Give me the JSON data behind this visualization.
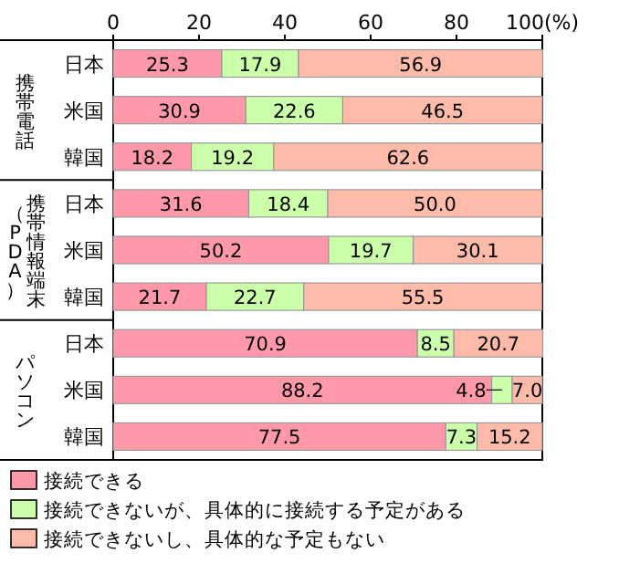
{
  "chart_data": {
    "type": "bar",
    "orientation": "horizontal",
    "stacked": true,
    "categories": [
      "日本",
      "米国",
      "韓国",
      "日本",
      "米国",
      "韓国",
      "日本",
      "米国",
      "韓国"
    ],
    "annotations": [
      "携帯電話",
      "携帯情報端末",
      "（PDA）",
      "パソコン"
    ],
    "xlim": [
      0,
      100
    ],
    "xticks": [
      0,
      20,
      40,
      60,
      80,
      {
        "value": 100,
        "label": "100(%)"
      }
    ],
    "legend": "bottom",
    "series": [
      {
        "name": "接続できる",
        "color": "#ff99aa",
        "values": [
          25.3,
          30.9,
          18.2,
          31.6,
          50.2,
          21.7,
          70.9,
          88.2,
          77.5
        ],
        "value_labels": [
          "25.3",
          "30.9",
          "18.2",
          "31.6",
          "50.2",
          "21.7",
          "70.9",
          "88.2",
          "77.5"
        ]
      },
      {
        "name": "接続できないが、具体的に接続する予定がある",
        "color": "#ccffaa",
        "values": [
          17.9,
          22.6,
          19.2,
          18.4,
          19.7,
          22.7,
          8.5,
          4.8,
          7.3
        ],
        "value_labels": [
          "17.9",
          "22.6",
          "19.2",
          "18.4",
          "19.7",
          "22.7",
          "8.5",
          "4.8",
          "7.3"
        ]
      },
      {
        "name": "接続できないし、具体的な予定もない",
        "color": "#ffbbaa",
        "values": [
          56.9,
          46.5,
          62.6,
          50.0,
          30.1,
          55.5,
          20.7,
          7.0,
          15.2
        ],
        "value_labels": [
          "56.9",
          "46.5",
          "62.6",
          "50.0",
          "30.1",
          "55.5",
          "20.7",
          "7.0",
          "15.2"
        ]
      }
    ]
  }
}
